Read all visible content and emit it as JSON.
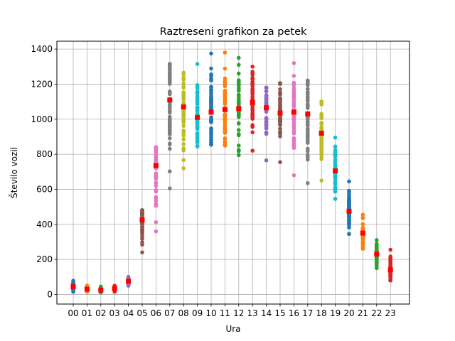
{
  "chart_data": {
    "type": "scatter",
    "title": "Raztreseni grafikon za petek",
    "xlabel": "Ura",
    "ylabel": "Število vozil",
    "categories": [
      "00",
      "01",
      "02",
      "03",
      "04",
      "05",
      "06",
      "07",
      "08",
      "09",
      "10",
      "11",
      "12",
      "13",
      "14",
      "15",
      "16",
      "17",
      "18",
      "19",
      "20",
      "21",
      "22",
      "23"
    ],
    "ylim": [
      -55,
      1445
    ],
    "yticks": [
      0,
      200,
      400,
      600,
      800,
      1000,
      1200,
      1400
    ],
    "grid": true,
    "series_colors": [
      "#1f77b4",
      "#ff7f0e",
      "#2ca02c",
      "#d62728",
      "#9467bd",
      "#8c564b",
      "#e377c2",
      "#7f7f7f",
      "#bcbd22",
      "#17becf"
    ],
    "mean_color": "#ff0000",
    "hour_ranges": [
      {
        "hour": "00",
        "min": 15,
        "max": 78,
        "mean": 45
      },
      {
        "hour": "01",
        "min": 15,
        "max": 50,
        "mean": 30
      },
      {
        "hour": "02",
        "min": 12,
        "max": 45,
        "mean": 25
      },
      {
        "hour": "03",
        "min": 15,
        "max": 50,
        "mean": 33
      },
      {
        "hour": "04",
        "min": 50,
        "max": 100,
        "mean": 75
      },
      {
        "hour": "05",
        "min": 240,
        "max": 480,
        "mean": 425
      },
      {
        "hour": "06",
        "min": 360,
        "max": 840,
        "mean": 735
      },
      {
        "hour": "07",
        "min": 605,
        "max": 1315,
        "mean": 1110
      },
      {
        "hour": "08",
        "min": 720,
        "max": 1265,
        "mean": 1070
      },
      {
        "hour": "09",
        "min": 845,
        "max": 1315,
        "mean": 1010
      },
      {
        "hour": "10",
        "min": 855,
        "max": 1375,
        "mean": 1040
      },
      {
        "hour": "11",
        "min": 850,
        "max": 1380,
        "mean": 1055
      },
      {
        "hour": "12",
        "min": 795,
        "max": 1350,
        "mean": 1060
      },
      {
        "hour": "13",
        "min": 820,
        "max": 1300,
        "mean": 1095
      },
      {
        "hour": "14",
        "min": 765,
        "max": 1180,
        "mean": 1065
      },
      {
        "hour": "15",
        "min": 755,
        "max": 1205,
        "mean": 1035
      },
      {
        "hour": "16",
        "min": 680,
        "max": 1320,
        "mean": 1040
      },
      {
        "hour": "17",
        "min": 635,
        "max": 1220,
        "mean": 1030
      },
      {
        "hour": "18",
        "min": 650,
        "max": 1100,
        "mean": 920
      },
      {
        "hour": "19",
        "min": 545,
        "max": 895,
        "mean": 705
      },
      {
        "hour": "20",
        "min": 345,
        "max": 645,
        "mean": 475
      },
      {
        "hour": "21",
        "min": 260,
        "max": 455,
        "mean": 350
      },
      {
        "hour": "22",
        "min": 150,
        "max": 310,
        "mean": 230
      },
      {
        "hour": "23",
        "min": 80,
        "max": 255,
        "mean": 140
      }
    ]
  }
}
